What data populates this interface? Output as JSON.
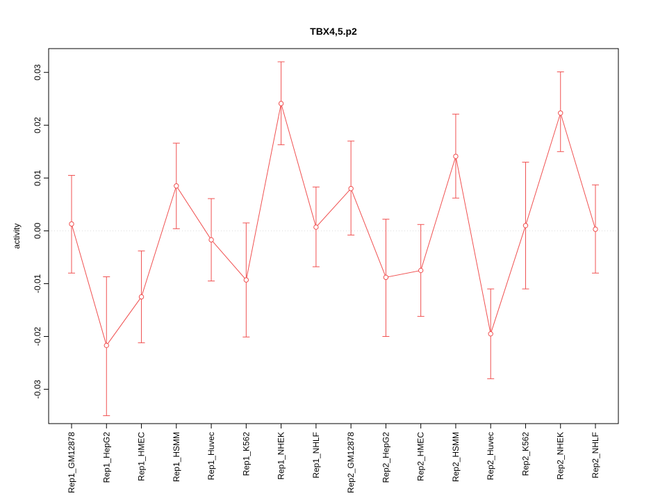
{
  "chart_data": {
    "type": "line",
    "title": "TBX4,5.p2",
    "xlabel": "",
    "ylabel": "activity",
    "legend": "none",
    "grid": "zero-line-only",
    "point_style": "open-circle-with-error-bars",
    "series_color": "#f05050",
    "zero_line_color": "#dddddd",
    "ylim": [
      -0.0365,
      0.0345
    ],
    "yticks": [
      -0.03,
      -0.02,
      -0.01,
      0.0,
      0.01,
      0.02,
      0.03
    ],
    "categories": [
      "Rep1_GM12878",
      "Rep1_HepG2",
      "Rep1_HMEC",
      "Rep1_HSMM",
      "Rep1_Huvec",
      "Rep1_K562",
      "Rep1_NHEK",
      "Rep1_NHLF",
      "Rep2_GM12878",
      "Rep2_HepG2",
      "Rep2_HMEC",
      "Rep2_HSMM",
      "Rep2_Huvec",
      "Rep2_K562",
      "Rep2_NHEK",
      "Rep2_NHLF"
    ],
    "series": [
      {
        "name": "activity",
        "values": [
          0.0013,
          -0.0217,
          -0.0125,
          0.0085,
          -0.0017,
          -0.0093,
          0.0241,
          0.0007,
          0.008,
          -0.0088,
          -0.0075,
          0.0141,
          -0.0195,
          0.001,
          0.0223,
          0.0003
        ],
        "err_low": [
          -0.008,
          -0.035,
          -0.0212,
          0.0004,
          -0.0095,
          -0.0201,
          0.0163,
          -0.0068,
          -0.0008,
          -0.02,
          -0.0162,
          0.0062,
          -0.028,
          -0.011,
          0.015,
          -0.008
        ],
        "err_high": [
          0.0105,
          -0.0087,
          -0.0038,
          0.0166,
          0.0061,
          0.0015,
          0.032,
          0.0083,
          0.017,
          0.0022,
          0.0012,
          0.0221,
          -0.011,
          0.013,
          0.0301,
          0.0087
        ]
      }
    ]
  }
}
